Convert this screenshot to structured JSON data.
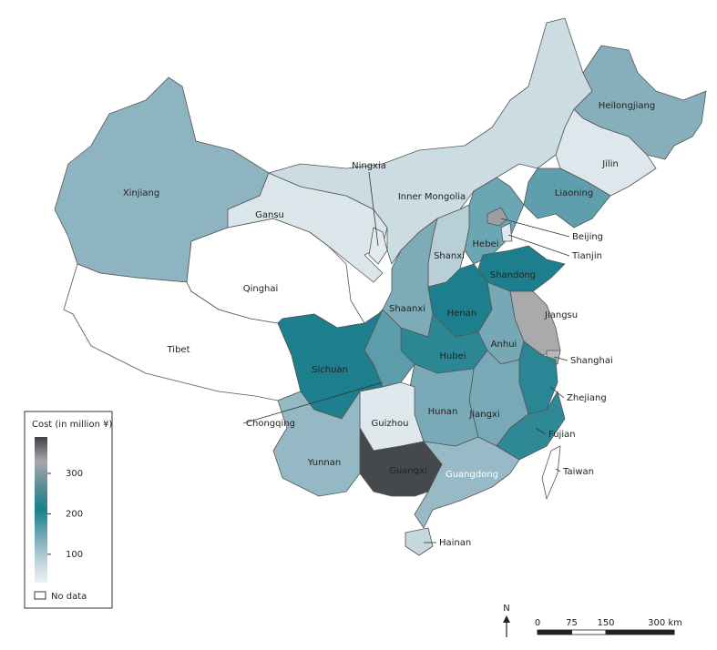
{
  "map": {
    "provinces": [
      {
        "name": "Xinjiang",
        "color": "#8fb4c1"
      },
      {
        "name": "Tibet",
        "color": "#ffffff"
      },
      {
        "name": "Qinghai",
        "color": "#ffffff"
      },
      {
        "name": "Gansu",
        "color": "#dbe6eb"
      },
      {
        "name": "Ningxia",
        "color": "#e2eaee"
      },
      {
        "name": "Inner Mongolia",
        "color": "#ccdce3"
      },
      {
        "name": "Heilongjiang",
        "color": "#86aebb"
      },
      {
        "name": "Jilin",
        "color": "#dde7ec"
      },
      {
        "name": "Liaoning",
        "color": "#5f9fad"
      },
      {
        "name": "Hebei",
        "color": "#6aa6b3"
      },
      {
        "name": "Beijing",
        "color": "#9c9fa2"
      },
      {
        "name": "Tianjin",
        "color": "#dfe8ec"
      },
      {
        "name": "Shanxi",
        "color": "#b9cfd8"
      },
      {
        "name": "Shaanxi",
        "color": "#7eabb8"
      },
      {
        "name": "Shandong",
        "color": "#1d7f8e"
      },
      {
        "name": "Henan",
        "color": "#1d7f8e"
      },
      {
        "name": "Jiangsu",
        "color": "#a8aaac"
      },
      {
        "name": "Shanghai",
        "color": "#b5b8ba"
      },
      {
        "name": "Anhui",
        "color": "#76a8b5"
      },
      {
        "name": "Hubei",
        "color": "#2c8795"
      },
      {
        "name": "Chongqing",
        "color": "#5d9dab"
      },
      {
        "name": "Sichuan",
        "color": "#1d7f8e"
      },
      {
        "name": "Zhejiang",
        "color": "#2a8694"
      },
      {
        "name": "Jiangxi",
        "color": "#78a9b6"
      },
      {
        "name": "Hunan",
        "color": "#7aaab7"
      },
      {
        "name": "Fujian",
        "color": "#2f8896"
      },
      {
        "name": "Guizhou",
        "color": "#dfe8ec"
      },
      {
        "name": "Guangxi",
        "color": "#98bac6"
      },
      {
        "name": "Guangdong",
        "color": "#46494c"
      },
      {
        "name": "Yunnan",
        "color": "#94b8c4"
      },
      {
        "name": "Hainan",
        "color": "#c5d8df"
      },
      {
        "name": "Taiwan",
        "color": "#ffffff"
      }
    ],
    "legend": {
      "title": "Cost (in million ¥)",
      "range": [
        30,
        390
      ],
      "ticks": [
        100,
        200,
        300
      ],
      "colors": [
        "#eef2f4",
        "#b7ced6",
        "#6aa6b3",
        "#18808f",
        "#5e8f98",
        "#a5a7aa",
        "#3e4145"
      ],
      "no_data_label": "No data",
      "no_data_color": "#ffffff"
    },
    "scale_bar": {
      "north": "N",
      "ticks": [
        0,
        75,
        150,
        {
          "value": 300,
          "label": "300 km"
        }
      ]
    }
  }
}
